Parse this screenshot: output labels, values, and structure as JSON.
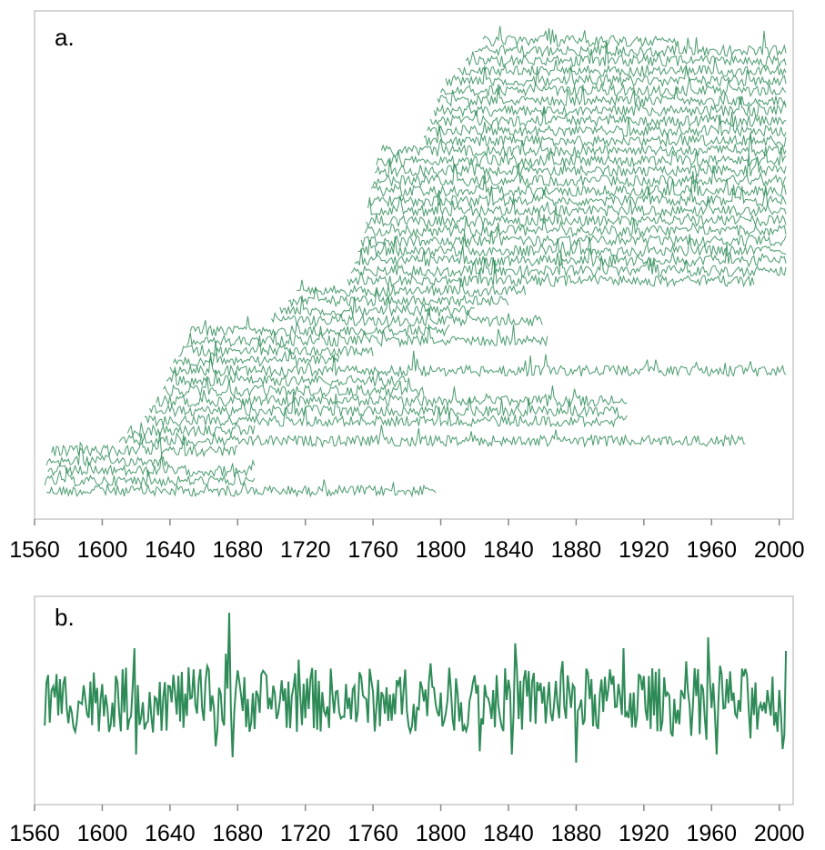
{
  "chart_data": [
    {
      "type": "line",
      "panel": "a.",
      "description_kind": "stacked individual ring-width series (spaghetti plot)",
      "xlim": [
        1560,
        2005
      ],
      "x_ticks": [
        "1560",
        "1600",
        "1640",
        "1680",
        "1720",
        "1760",
        "1800",
        "1840",
        "1880",
        "1920",
        "1960",
        "2000"
      ],
      "color": "#2e8b57",
      "series": [
        {
          "start": 1567,
          "end": 1797
        },
        {
          "start": 1566,
          "end": 1690
        },
        {
          "start": 1568,
          "end": 1690
        },
        {
          "start": 1567,
          "end": 1640
        },
        {
          "start": 1570,
          "end": 1680
        },
        {
          "start": 1610,
          "end": 1980
        },
        {
          "start": 1615,
          "end": 1690
        },
        {
          "start": 1625,
          "end": 1910
        },
        {
          "start": 1628,
          "end": 1905
        },
        {
          "start": 1632,
          "end": 1910
        },
        {
          "start": 1636,
          "end": 1790
        },
        {
          "start": 1638,
          "end": 1780
        },
        {
          "start": 1640,
          "end": 2004
        },
        {
          "start": 1642,
          "end": 1740
        },
        {
          "start": 1645,
          "end": 1760
        },
        {
          "start": 1650,
          "end": 1863
        },
        {
          "start": 1652,
          "end": 1805
        },
        {
          "start": 1700,
          "end": 1860
        },
        {
          "start": 1705,
          "end": 1820
        },
        {
          "start": 1710,
          "end": 1840
        },
        {
          "start": 1715,
          "end": 1850
        },
        {
          "start": 1745,
          "end": 1985
        },
        {
          "start": 1747,
          "end": 2004
        },
        {
          "start": 1749,
          "end": 2004
        },
        {
          "start": 1751,
          "end": 2004
        },
        {
          "start": 1753,
          "end": 2004
        },
        {
          "start": 1755,
          "end": 2004
        },
        {
          "start": 1756,
          "end": 2004
        },
        {
          "start": 1757,
          "end": 2004
        },
        {
          "start": 1758,
          "end": 2004
        },
        {
          "start": 1759,
          "end": 2004
        },
        {
          "start": 1760,
          "end": 2004
        },
        {
          "start": 1761,
          "end": 2004
        },
        {
          "start": 1762,
          "end": 2004
        },
        {
          "start": 1765,
          "end": 2004
        },
        {
          "start": 1790,
          "end": 2004
        },
        {
          "start": 1792,
          "end": 2004
        },
        {
          "start": 1794,
          "end": 2004
        },
        {
          "start": 1796,
          "end": 2004
        },
        {
          "start": 1798,
          "end": 2004
        },
        {
          "start": 1800,
          "end": 2004
        },
        {
          "start": 1803,
          "end": 2004
        },
        {
          "start": 1810,
          "end": 2004
        },
        {
          "start": 1815,
          "end": 2004
        },
        {
          "start": 1820,
          "end": 2004
        },
        {
          "start": 1825,
          "end": 1940
        }
      ]
    },
    {
      "type": "line",
      "panel": "b.",
      "description_kind": "chronology index",
      "xlim": [
        1560,
        2005
      ],
      "x_ticks": [
        "1560",
        "1600",
        "1640",
        "1680",
        "1720",
        "1760",
        "1800",
        "1840",
        "1880",
        "1920",
        "1960",
        "2000"
      ],
      "color": "#2e8b57",
      "start_year": 1566,
      "end_year": 2004,
      "peaks": [
        {
          "x": 1619,
          "y": 0.95
        },
        {
          "x": 1620,
          "y": -1.0
        },
        {
          "x": 1673,
          "y": 0.85
        },
        {
          "x": 1675,
          "y": 1.6
        },
        {
          "x": 1677,
          "y": -1.05
        },
        {
          "x": 1667,
          "y": -0.85
        },
        {
          "x": 1842,
          "y": -1.0
        },
        {
          "x": 1880,
          "y": -1.15
        },
        {
          "x": 1908,
          "y": 0.95
        },
        {
          "x": 1963,
          "y": -1.0
        },
        {
          "x": 2002,
          "y": -0.9
        },
        {
          "x": 2004,
          "y": 0.9
        }
      ]
    }
  ]
}
